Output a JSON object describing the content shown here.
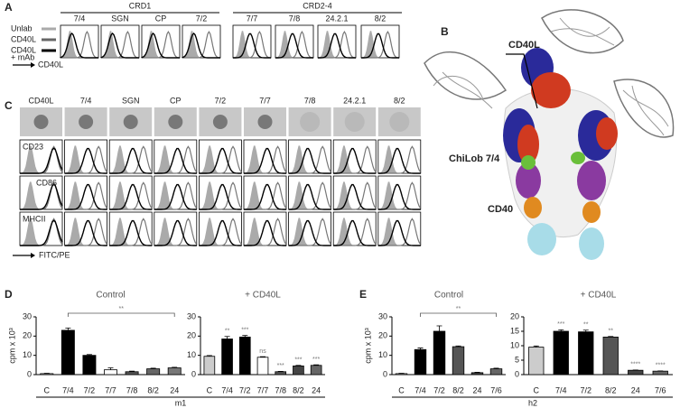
{
  "panel_labels": [
    "A",
    "B",
    "C",
    "D",
    "E"
  ],
  "panel_a": {
    "groups": [
      "CRD1",
      "CRD2-4"
    ],
    "columns": [
      "7/4",
      "SGN",
      "CP",
      "7/2",
      "7/7",
      "7/8",
      "24.2.1",
      "8/2"
    ],
    "legend": [
      [
        "Unlab"
      ],
      [
        "CD40L"
      ],
      [
        "CD40L",
        "+ mAb"
      ]
    ],
    "axis_label": "CD40L"
  },
  "panel_b": {
    "labels": [
      "CD40L",
      "ChiLob 7/4",
      "CD40"
    ]
  },
  "panel_c": {
    "columns": [
      "CD40L",
      "7/4",
      "SGN",
      "CP",
      "7/2",
      "7/7",
      "7/8",
      "24.2.1",
      "8/2"
    ],
    "rows": [
      "CD23",
      "CD86",
      "MHCII"
    ],
    "axis_label": "FITC/PE"
  },
  "group_labels": [
    "m1",
    "h2"
  ],
  "chart_data": [
    {
      "type": "bar",
      "title": "Control",
      "ylabel": "cpm x 10³",
      "bracket_label": "**",
      "categories": [
        "C",
        "7/4",
        "7/2",
        "7/7",
        "7/8",
        "8/2",
        "24"
      ],
      "values": [
        0.5,
        23,
        10,
        2.5,
        1.5,
        3,
        3.5
      ],
      "errors": [
        0.2,
        1.2,
        0.4,
        1.0,
        0.3,
        0.3,
        0.3
      ],
      "colors": [
        "#ffffff",
        "#000000",
        "#000000",
        "#ffffff",
        "#555555",
        "#666666",
        "#777777"
      ],
      "ylim": [
        0,
        30
      ],
      "yticks": [
        0,
        10,
        20,
        30
      ]
    },
    {
      "type": "bar",
      "title": "+ CD40L",
      "categories": [
        "C",
        "7/4",
        "7/2",
        "7/7",
        "7/8",
        "8/2",
        "24"
      ],
      "values": [
        9.5,
        18.5,
        19.5,
        9,
        1.5,
        4.5,
        4.8
      ],
      "errors": [
        0.4,
        1.3,
        0.8,
        0.3,
        0.2,
        0.3,
        0.3
      ],
      "annotations": [
        null,
        "**",
        "***",
        "ns",
        "***",
        "***",
        "***"
      ],
      "colors": [
        "#cccccc",
        "#000000",
        "#000000",
        "#ffffff",
        "#555555",
        "#444444",
        "#666666"
      ],
      "ylim": [
        0,
        30
      ],
      "yticks": [
        0,
        10,
        20,
        30
      ]
    },
    {
      "type": "bar",
      "title": "Control",
      "ylabel": "cpm x 10³",
      "bracket_label": "**",
      "categories": [
        "C",
        "7/4",
        "7/2",
        "8/2",
        "24",
        "7/6"
      ],
      "values": [
        0.5,
        13,
        22.5,
        14.5,
        1,
        3
      ],
      "errors": [
        0.2,
        0.8,
        2.8,
        0.4,
        0.2,
        0.3
      ],
      "colors": [
        "#ffffff",
        "#000000",
        "#000000",
        "#555555",
        "#444444",
        "#666666"
      ],
      "ylim": [
        0,
        30
      ],
      "yticks": [
        0,
        10,
        20,
        30
      ]
    },
    {
      "type": "bar",
      "title": "+ CD40L",
      "categories": [
        "C",
        "7/4",
        "7/2",
        "8/2",
        "24",
        "7/6"
      ],
      "values": [
        9.5,
        15,
        14.8,
        13,
        1.5,
        1.2
      ],
      "errors": [
        0.4,
        0.5,
        0.6,
        0.2,
        0.1,
        0.1
      ],
      "annotations": [
        null,
        "***",
        "**",
        "**",
        "****",
        "****"
      ],
      "colors": [
        "#cccccc",
        "#000000",
        "#000000",
        "#555555",
        "#444444",
        "#666666"
      ],
      "ylim": [
        0,
        20
      ],
      "yticks": [
        0,
        5,
        10,
        15,
        20
      ]
    }
  ]
}
